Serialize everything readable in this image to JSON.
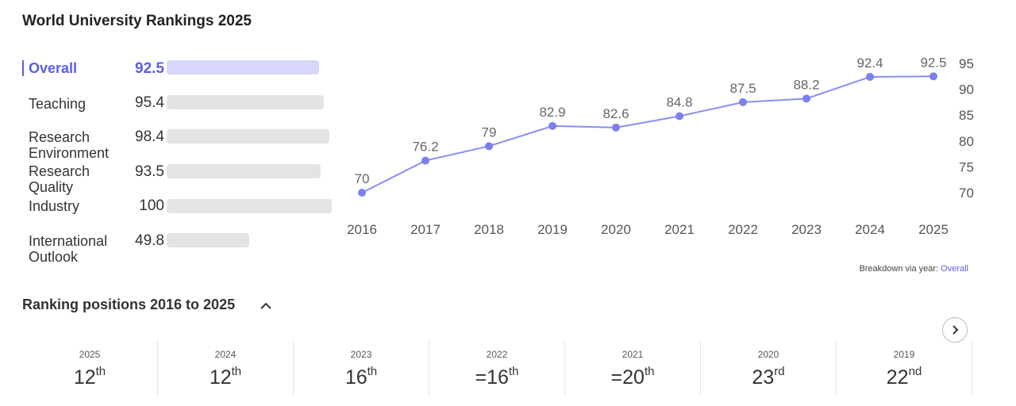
{
  "page_title": "World University Rankings 2025",
  "metrics": [
    {
      "label": "Overall",
      "value": "92.5",
      "score": 92.5,
      "active": true
    },
    {
      "label": "Teaching",
      "value": "95.4",
      "score": 95.4
    },
    {
      "label": "Research Environment",
      "value": "98.4",
      "score": 98.4
    },
    {
      "label": "Research Quality",
      "value": "93.5",
      "score": 93.5
    },
    {
      "label": "Industry",
      "value": "100",
      "score": 100
    },
    {
      "label": "International Outlook",
      "value": "49.8",
      "score": 49.8
    }
  ],
  "chart_data": {
    "type": "line",
    "x": [
      "2016",
      "2017",
      "2018",
      "2019",
      "2020",
      "2021",
      "2022",
      "2023",
      "2024",
      "2025"
    ],
    "values": [
      70,
      76.2,
      79,
      82.9,
      82.6,
      84.8,
      87.5,
      88.2,
      92.4,
      92.5
    ],
    "data_labels": [
      "70",
      "76.2",
      "79",
      "82.9",
      "82.6",
      "84.8",
      "87.5",
      "88.2",
      "92.4",
      "92.5"
    ],
    "y_ticks": [
      "95",
      "90",
      "85",
      "80",
      "75",
      "70"
    ],
    "ylim": [
      70,
      95
    ],
    "y_axis_position": "right",
    "grid": false,
    "line_color": "#8a8ef0",
    "marker_color": "#7c80ec"
  },
  "breakdown": {
    "prefix": "Breakdown via year: ",
    "link": "Overall"
  },
  "ranking": {
    "title": "Ranking positions 2016 to 2025",
    "positions": [
      {
        "year": "2025",
        "prefix": "",
        "num": "12",
        "suffix": "th"
      },
      {
        "year": "2024",
        "prefix": "",
        "num": "12",
        "suffix": "th"
      },
      {
        "year": "2023",
        "prefix": "",
        "num": "16",
        "suffix": "th"
      },
      {
        "year": "2022",
        "prefix": "=",
        "num": "16",
        "suffix": "th"
      },
      {
        "year": "2021",
        "prefix": "=",
        "num": "20",
        "suffix": "th"
      },
      {
        "year": "2020",
        "prefix": "",
        "num": "23",
        "suffix": "rd"
      },
      {
        "year": "2019",
        "prefix": "",
        "num": "22",
        "suffix": "nd"
      }
    ]
  },
  "colors": {
    "accent": "#5a5ee6",
    "bar": "#e4e4e4",
    "bar_active": "#d6d7fb"
  }
}
